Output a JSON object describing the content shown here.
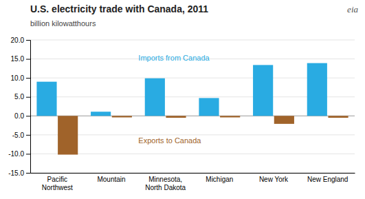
{
  "chart_data": {
    "type": "bar",
    "title": "U.S. electricity trade with Canada,  2011",
    "subtitle": "billion kilowatthours",
    "categories": [
      "Pacific\nNorthwest",
      "Mountain",
      "Minnesota,\nNorth Dakota",
      "Michigan",
      "New York",
      "New England"
    ],
    "series": [
      {
        "name": "Imports from Canada",
        "color": "#29ABE2",
        "values": [
          9.0,
          1.1,
          9.9,
          4.7,
          13.4,
          13.9
        ]
      },
      {
        "name": "Exports to Canada",
        "color": "#A0632A",
        "values": [
          -10.2,
          -0.4,
          -0.5,
          -0.4,
          -2.1,
          -0.5
        ]
      }
    ],
    "ylim": [
      -15.0,
      20.0
    ],
    "yticks": [
      {
        "value": -15.0,
        "label": "-15.0"
      },
      {
        "value": -10.0,
        "label": "-10.0"
      },
      {
        "value": -5.0,
        "label": "-5.0"
      },
      {
        "value": 0.0,
        "label": "0.0"
      },
      {
        "value": 5.0,
        "label": "5.0"
      },
      {
        "value": 10.0,
        "label": "10.0"
      },
      {
        "value": 15.0,
        "label": "15.0"
      },
      {
        "value": 20.0,
        "label": "20.0"
      }
    ],
    "grid": true,
    "annotations": [
      {
        "text": "eia"
      }
    ]
  }
}
